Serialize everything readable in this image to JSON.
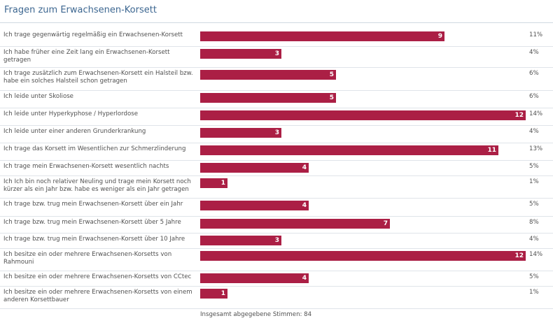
{
  "poll": {
    "title": "Fragen zum Erwachsenen-Korsett",
    "max_votes": 12,
    "total_label": "Insgesamt abgegebene Stimmen: 84",
    "bar_color": "#ab1f45",
    "options": [
      {
        "label": "Ich trage gegenwärtig regelmäßig ein Erwachsenen-Korsett",
        "votes": 9,
        "percent": "11%"
      },
      {
        "label": "Ich habe früher eine Zeit lang ein Erwachsenen-Korsett getragen",
        "votes": 3,
        "percent": "4%"
      },
      {
        "label": "Ich trage zusätzlich zum Erwachsenen-Korsett ein Halsteil bzw. habe ein solches Halsteil schon getragen",
        "votes": 5,
        "percent": "6%"
      },
      {
        "label": "Ich leide unter Skoliose",
        "votes": 5,
        "percent": "6%"
      },
      {
        "label": "Ich leide unter Hyperkyphose / Hyperlordose",
        "votes": 12,
        "percent": "14%"
      },
      {
        "label": "Ich leide unter einer anderen Grunderkrankung",
        "votes": 3,
        "percent": "4%"
      },
      {
        "label": "Ich trage das Korsett im Wesentlichen zur Schmerzlinderung",
        "votes": 11,
        "percent": "13%"
      },
      {
        "label": "Ich trage mein Erwachsenen-Korsett wesentlich nachts",
        "votes": 4,
        "percent": "5%"
      },
      {
        "label": "Ich Ich bin noch relativer Neuling und trage mein Korsett noch kürzer als ein Jahr bzw. habe es weniger als ein Jahr getragen",
        "votes": 1,
        "percent": "1%"
      },
      {
        "label": "Ich trage bzw. trug mein Erwachsenen-Korsett über ein Jahr",
        "votes": 4,
        "percent": "5%"
      },
      {
        "label": "Ich trage bzw. trug mein Erwachsenen-Korsett über 5 Jahre",
        "votes": 7,
        "percent": "8%"
      },
      {
        "label": "Ich trage bzw. trug mein Erwachsenen-Korsett über 10 Jahre",
        "votes": 3,
        "percent": "4%"
      },
      {
        "label": "Ich besitze ein oder mehrere Erwachsenen-Korsetts von Rahmouni",
        "votes": 12,
        "percent": "14%"
      },
      {
        "label": "Ich besitze ein oder mehrere Erwachsenen-Korsetts von CCtec",
        "votes": 4,
        "percent": "5%"
      },
      {
        "label": "Ich besitze ein oder mehrere Erwachsenen-Korsetts von einem anderen Korsettbauer",
        "votes": 1,
        "percent": "1%"
      }
    ]
  }
}
